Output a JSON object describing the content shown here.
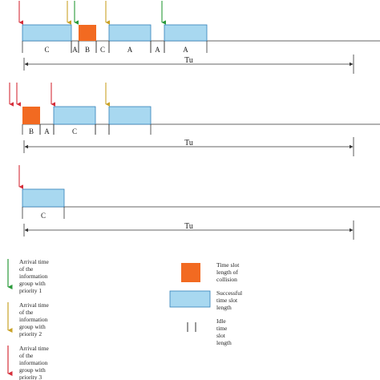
{
  "colors": {
    "priority_1": "#2a9a3a",
    "priority_2": "#c9a227",
    "priority_3": "#d62e3a",
    "collision": "#f26a21",
    "success": "#a8d8f0",
    "success_stroke": "#2f7fb8",
    "line": "#333333"
  },
  "timelines": [
    {
      "period_label": "Tu",
      "slots": [
        {
          "label": "C",
          "type": "success",
          "t0": 0,
          "t1": 61
        },
        {
          "label": "A",
          "type": "idle",
          "t0": 61,
          "t1": 70
        },
        {
          "label": "B",
          "type": "collision",
          "t0": 70,
          "t1": 92
        },
        {
          "label": "C",
          "type": "idle",
          "t0": 92,
          "t1": 108
        },
        {
          "label": "A",
          "type": "success",
          "t0": 108,
          "t1": 160
        },
        {
          "label": "A",
          "type": "idle",
          "t0": 160,
          "t1": 177
        },
        {
          "label": "A",
          "type": "success",
          "t0": 177,
          "t1": 230
        }
      ],
      "arrivals": [
        {
          "priority": 3,
          "t": -4
        },
        {
          "priority": 2,
          "t": 56
        },
        {
          "priority": 1,
          "t": 65
        },
        {
          "priority": 2,
          "t": 104
        },
        {
          "priority": 1,
          "t": 174
        }
      ]
    },
    {
      "period_label": "Tu",
      "slots": [
        {
          "label": "B",
          "type": "collision",
          "t0": 0,
          "t1": 22
        },
        {
          "label": "A",
          "type": "idle",
          "t0": 22,
          "t1": 39
        },
        {
          "label": "C",
          "type": "success",
          "t0": 39,
          "t1": 91
        },
        {
          "label": "",
          "type": "idle",
          "t0": 91,
          "t1": 108
        },
        {
          "label": "",
          "type": "success",
          "t0": 108,
          "t1": 160
        }
      ],
      "arrivals": [
        {
          "priority": 3,
          "t": -16
        },
        {
          "priority": 3,
          "t": -7
        },
        {
          "priority": 3,
          "t": 36
        },
        {
          "priority": 2,
          "t": 104
        }
      ]
    },
    {
      "period_label": "Tu",
      "slots": [
        {
          "label": "C",
          "type": "success",
          "t0": 0,
          "t1": 52
        }
      ],
      "arrivals": [
        {
          "priority": 3,
          "t": -4
        }
      ]
    }
  ],
  "legend": {
    "priority_1": "Arrival time of the information group with priority 1",
    "priority_2": "Arrival time of the information group with priority 2",
    "priority_3": "Arrival time of the information group with priority 3",
    "collision": "Time slot length of collision",
    "success": "Successful time slot length",
    "idle": "Idle time slot length"
  }
}
